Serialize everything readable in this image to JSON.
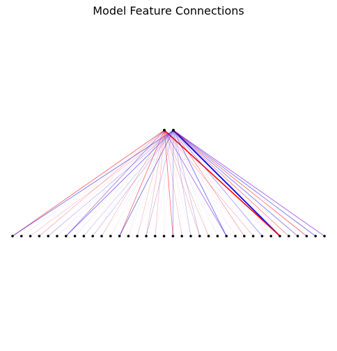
{
  "title": "Model Feature Connections",
  "colors": {
    "background": "#ffffff",
    "node": "#000000",
    "positive": "#ff0000",
    "negative": "#0000ff",
    "mixed": "#8a2be2"
  },
  "graph": {
    "output_node_count": 2,
    "input_node_count": 36,
    "edges": [
      {
        "from": 1,
        "to": 30,
        "color": "negative",
        "weight": 1.6
      },
      {
        "from": 0,
        "to": 30,
        "color": "positive",
        "weight": 1.3
      },
      {
        "from": 1,
        "to": 35,
        "color": "mixed",
        "weight": 0.7
      },
      {
        "from": 1,
        "to": 34,
        "color": "negative",
        "weight": 0.5
      },
      {
        "from": 1,
        "to": 33,
        "color": "positive",
        "weight": 0.5
      },
      {
        "from": 1,
        "to": 32,
        "color": "negative",
        "weight": 0.45
      },
      {
        "from": 1,
        "to": 31,
        "color": "positive",
        "weight": 0.4
      },
      {
        "from": 0,
        "to": 24,
        "color": "mixed",
        "weight": 0.6
      },
      {
        "from": 1,
        "to": 24,
        "color": "negative",
        "weight": 0.5
      },
      {
        "from": 1,
        "to": 26,
        "color": "positive",
        "weight": 0.3
      },
      {
        "from": 1,
        "to": 28,
        "color": "negative",
        "weight": 0.3
      },
      {
        "from": 0,
        "to": 18,
        "color": "positive",
        "weight": 0.5
      },
      {
        "from": 1,
        "to": 18,
        "color": "negative",
        "weight": 0.3
      },
      {
        "from": 0,
        "to": 12,
        "color": "positive",
        "weight": 0.5
      },
      {
        "from": 1,
        "to": 12,
        "color": "negative",
        "weight": 0.5
      },
      {
        "from": 0,
        "to": 6,
        "color": "mixed",
        "weight": 0.55
      },
      {
        "from": 1,
        "to": 6,
        "color": "negative",
        "weight": 0.5
      },
      {
        "from": 0,
        "to": 0,
        "color": "positive",
        "weight": 0.55
      },
      {
        "from": 1,
        "to": 0,
        "color": "negative",
        "weight": 0.5
      },
      {
        "from": 0,
        "to": 3,
        "color": "positive",
        "weight": 0.15
      },
      {
        "from": 1,
        "to": 9,
        "color": "negative",
        "weight": 0.15
      },
      {
        "from": 0,
        "to": 15,
        "color": "positive",
        "weight": 0.15
      },
      {
        "from": 1,
        "to": 15,
        "color": "negative",
        "weight": 0.15
      },
      {
        "from": 0,
        "to": 21,
        "color": "positive",
        "weight": 0.15
      },
      {
        "from": 1,
        "to": 21,
        "color": "negative",
        "weight": 0.15
      },
      {
        "from": 0,
        "to": 27,
        "color": "positive",
        "weight": 0.15
      },
      {
        "from": 0,
        "to": 10,
        "color": "positive",
        "weight": 0.12
      },
      {
        "from": 1,
        "to": 4,
        "color": "negative",
        "weight": 0.12
      },
      {
        "from": 0,
        "to": 16,
        "color": "positive",
        "weight": 0.12
      },
      {
        "from": 1,
        "to": 20,
        "color": "negative",
        "weight": 0.12
      },
      {
        "from": 0,
        "to": 22,
        "color": "positive",
        "weight": 0.12
      },
      {
        "from": 0,
        "to": 14,
        "color": "positive",
        "weight": 0.1
      },
      {
        "from": 1,
        "to": 8,
        "color": "negative",
        "weight": 0.1
      },
      {
        "from": 0,
        "to": 19,
        "color": "positive",
        "weight": 0.1
      },
      {
        "from": 1,
        "to": 2,
        "color": "positive",
        "weight": 0.1
      }
    ]
  }
}
